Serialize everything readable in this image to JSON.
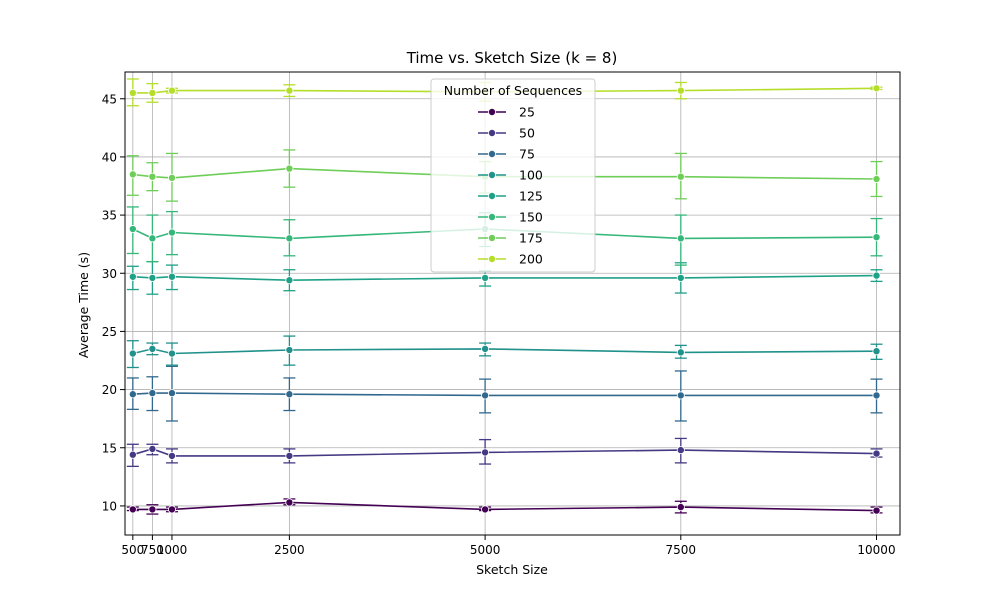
{
  "chart_data": {
    "type": "line",
    "title": "Time vs. Sketch Size (k = 8)",
    "xlabel": "Sketch Size",
    "ylabel": "Average Time (s)",
    "x": [
      500,
      750,
      1000,
      2500,
      5000,
      7500,
      10000
    ],
    "x_tick_labels": [
      "500",
      "750",
      "1000",
      "2500",
      "5000",
      "7500",
      "10000"
    ],
    "y_ticks": [
      10,
      15,
      20,
      25,
      30,
      35,
      40,
      45
    ],
    "xlim": [
      400,
      10300
    ],
    "ylim": [
      7.5,
      47.3
    ],
    "grid": true,
    "legend": {
      "title": "Number of Sequences",
      "placement": "top-center"
    },
    "series": [
      {
        "name": "25",
        "color": "#440154",
        "values": [
          9.7,
          9.7,
          9.7,
          10.3,
          9.7,
          9.9,
          9.6
        ],
        "err_low": [
          9.6,
          9.3,
          9.5,
          10.1,
          9.6,
          9.4,
          9.4
        ],
        "err_high": [
          9.9,
          10.1,
          9.9,
          10.6,
          9.9,
          10.4,
          9.9
        ]
      },
      {
        "name": "50",
        "color": "#443983",
        "values": [
          14.4,
          14.9,
          14.3,
          14.3,
          14.6,
          14.8,
          14.5
        ],
        "err_low": [
          13.4,
          14.4,
          13.7,
          13.7,
          13.6,
          13.7,
          14.2
        ],
        "err_high": [
          15.3,
          15.3,
          14.9,
          14.9,
          15.7,
          15.8,
          14.9
        ]
      },
      {
        "name": "75",
        "color": "#31688e",
        "values": [
          19.6,
          19.7,
          19.7,
          19.6,
          19.5,
          19.5,
          19.5
        ],
        "err_low": [
          18.3,
          18.2,
          17.3,
          18.2,
          18.0,
          17.3,
          18.0
        ],
        "err_high": [
          21.0,
          21.1,
          22.0,
          21.0,
          20.9,
          21.6,
          20.9
        ]
      },
      {
        "name": "100",
        "color": "#21918c",
        "values": [
          23.1,
          23.5,
          23.1,
          23.4,
          23.5,
          23.2,
          23.3
        ],
        "err_low": [
          21.9,
          23.0,
          22.1,
          22.1,
          22.9,
          22.7,
          22.6
        ],
        "err_high": [
          24.2,
          24.0,
          24.0,
          24.6,
          24.0,
          23.8,
          23.9
        ]
      },
      {
        "name": "125",
        "color": "#1fa187",
        "values": [
          29.7,
          29.6,
          29.7,
          29.4,
          29.6,
          29.6,
          29.8
        ],
        "err_low": [
          28.6,
          28.2,
          28.6,
          28.5,
          28.9,
          28.3,
          29.3
        ],
        "err_high": [
          30.6,
          31.0,
          30.7,
          30.3,
          30.2,
          30.9,
          30.3
        ]
      },
      {
        "name": "150",
        "color": "#35b779",
        "values": [
          33.8,
          33.0,
          33.5,
          33.0,
          33.8,
          33.0,
          33.1
        ],
        "err_low": [
          31.7,
          31.0,
          31.6,
          31.5,
          32.3,
          30.7,
          31.5
        ],
        "err_high": [
          35.7,
          35.0,
          35.3,
          34.6,
          35.2,
          35.0,
          34.7
        ]
      },
      {
        "name": "175",
        "color": "#6ece58",
        "values": [
          38.5,
          38.3,
          38.2,
          39.0,
          38.3,
          38.3,
          38.1
        ],
        "err_low": [
          36.7,
          37.1,
          36.2,
          37.4,
          36.9,
          36.4,
          36.6
        ],
        "err_high": [
          40.1,
          39.5,
          40.3,
          40.6,
          39.6,
          40.3,
          39.6
        ]
      },
      {
        "name": "200",
        "color": "#b5de2b",
        "values": [
          45.5,
          45.5,
          45.7,
          45.7,
          45.6,
          45.7,
          45.9
        ],
        "err_low": [
          44.4,
          44.7,
          45.5,
          45.2,
          44.8,
          45.0,
          45.8
        ],
        "err_high": [
          46.7,
          46.3,
          45.9,
          46.2,
          46.4,
          46.4,
          46.0
        ]
      }
    ]
  }
}
